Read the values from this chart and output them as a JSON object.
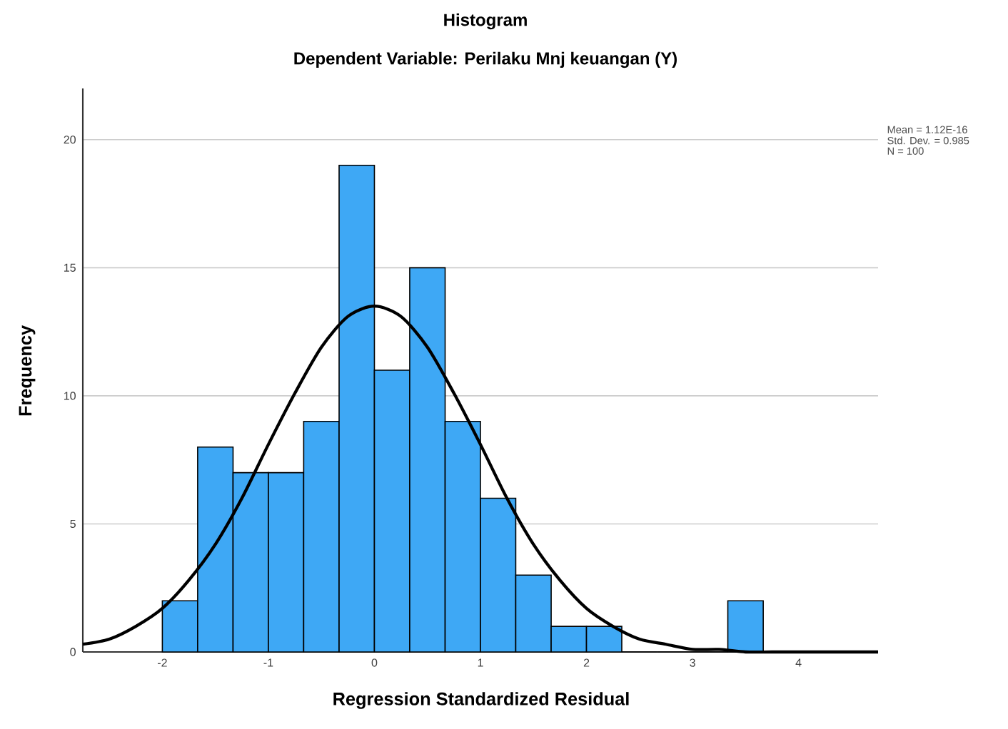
{
  "chart_data": {
    "type": "histogram",
    "title": "Histogram",
    "subtitle": "Dependent Variable: Perilaku  Mnj keuangan (Y)",
    "xlabel": "Regression Standardized Residual",
    "ylabel": "Frequency",
    "annotations": [
      "Mean = 1.12E-16",
      "Std. Dev. = 0.985",
      "N = 100"
    ],
    "xlim": [
      -2.75,
      4.75
    ],
    "ylim": [
      0,
      22
    ],
    "xticks": [
      -2,
      -1,
      0,
      1,
      2,
      3,
      4
    ],
    "yticks": [
      0,
      5,
      10,
      15,
      20
    ],
    "grid": "y",
    "series": [
      {
        "color": "#3ea8f5",
        "bins": [
          -2,
          -1.667,
          -1.333,
          -1,
          -0.667,
          -0.333,
          0,
          0.333,
          0.667,
          1,
          1.333,
          1.667,
          2,
          2.333,
          2.667,
          3,
          3.333,
          3.667
        ],
        "values": [
          2,
          8,
          7,
          7,
          9,
          19,
          11,
          15,
          9,
          6,
          3,
          1,
          1,
          0,
          0,
          0,
          2
        ]
      },
      {
        "type": "line",
        "color": "#000000",
        "x": [
          -2.75,
          -2.5,
          -2.25,
          -2,
          -1.75,
          -1.5,
          -1.25,
          -1,
          -0.75,
          -0.5,
          -0.25,
          0,
          0.25,
          0.5,
          0.75,
          1,
          1.25,
          1.5,
          1.75,
          2,
          2.25,
          2.5,
          2.75,
          3,
          3.25,
          3.5,
          3.75,
          4,
          4.25,
          4.5,
          4.75
        ],
        "values": [
          0.3,
          0.5,
          1.0,
          1.7,
          2.8,
          4.2,
          6.0,
          8.1,
          10.1,
          11.9,
          13.1,
          13.5,
          13.1,
          11.9,
          10.1,
          8.1,
          6.0,
          4.2,
          2.8,
          1.7,
          1.0,
          0.5,
          0.3,
          0.1,
          0.1,
          0,
          0,
          0,
          0,
          0,
          0
        ]
      }
    ]
  }
}
